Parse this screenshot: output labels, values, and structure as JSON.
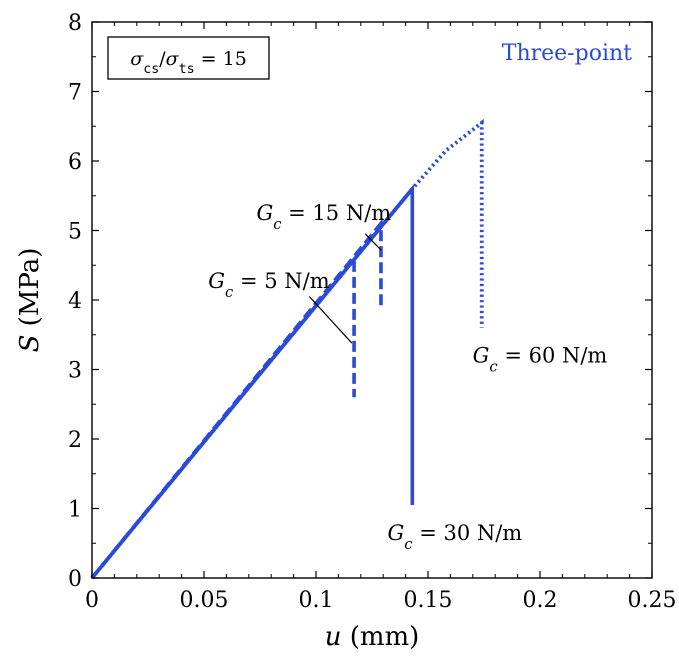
{
  "chart_data": {
    "type": "line",
    "xlabel": "u (mm)",
    "ylabel": "S (MPa)",
    "xlim": [
      0,
      0.25
    ],
    "ylim": [
      0,
      8
    ],
    "x_ticks": [
      0,
      0.05,
      0.1,
      0.15,
      0.2,
      0.25
    ],
    "x_tick_labels": [
      "0",
      "0.05",
      "0.1",
      "0.15",
      "0.2",
      "0.25"
    ],
    "y_ticks": [
      0,
      1,
      2,
      3,
      4,
      5,
      6,
      7,
      8
    ],
    "y_tick_labels": [
      "0",
      "1",
      "2",
      "3",
      "4",
      "5",
      "6",
      "7",
      "8"
    ],
    "grid": false,
    "series_color": "#2a4bd7",
    "legend_box": "σcs/σts = 15",
    "series_label": "Three-point",
    "series": [
      {
        "name": "Gc = 5 N/m",
        "style": "dashed",
        "x": [
          0,
          0.117,
          0.117
        ],
        "y": [
          0,
          4.6,
          2.6
        ]
      },
      {
        "name": "Gc = 15 N/m",
        "style": "dashed",
        "x": [
          0,
          0.129,
          0.129
        ],
        "y": [
          0,
          5.1,
          3.9
        ]
      },
      {
        "name": "Gc = 30 N/m",
        "style": "solid",
        "x": [
          0,
          0.143,
          0.143
        ],
        "y": [
          0,
          5.6,
          1.05
        ]
      },
      {
        "name": "Gc = 60 N/m",
        "style": "dotted",
        "x": [
          0,
          0.143,
          0.158,
          0.174,
          0.174
        ],
        "y": [
          0,
          5.6,
          6.15,
          6.55,
          3.6
        ]
      }
    ],
    "annotations": [
      {
        "text": "Gc = 15 N/m",
        "text_x": 0.1035,
        "text_y": 5.15,
        "line": [
          [
            0.122,
            4.95
          ],
          [
            0.129,
            4.72
          ]
        ]
      },
      {
        "text": "Gc = 5 N/m",
        "text_x": 0.079,
        "text_y": 4.17,
        "line": [
          [
            0.097,
            4.05
          ],
          [
            0.116,
            3.38
          ]
        ]
      },
      {
        "text": "Gc = 60 N/m",
        "text_x": 0.2,
        "text_y": 3.1
      },
      {
        "text": "Gc = 30 N/m",
        "text_x": 0.162,
        "text_y": 0.55
      }
    ]
  }
}
